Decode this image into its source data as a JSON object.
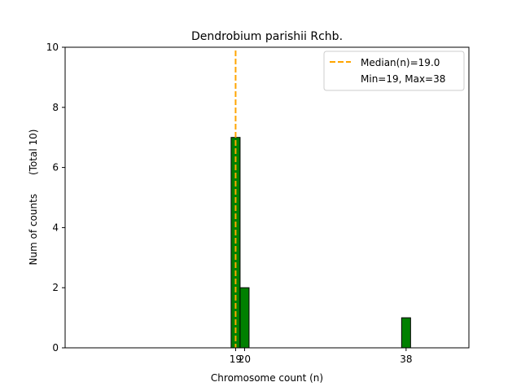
{
  "chart_data": {
    "type": "bar",
    "title": "Dendrobium parishii Rchb.",
    "xlabel": "Chromosome count (n)",
    "ylabel": "Num of counts      (Total 10)",
    "xlim": [
      0,
      45
    ],
    "ylim": [
      0,
      10
    ],
    "x_ticks": [
      19,
      20,
      38
    ],
    "y_ticks": [
      0,
      2,
      4,
      6,
      8,
      10
    ],
    "bars": [
      {
        "x": 19,
        "value": 7
      },
      {
        "x": 20,
        "value": 2
      },
      {
        "x": 38,
        "value": 1
      }
    ],
    "bar_color": "#008000",
    "median": 19.0,
    "median_color": "#FFA500",
    "legend": {
      "placement": "top-right",
      "entries": [
        "Median(n)=19.0",
        "Min=19, Max=38"
      ]
    }
  }
}
